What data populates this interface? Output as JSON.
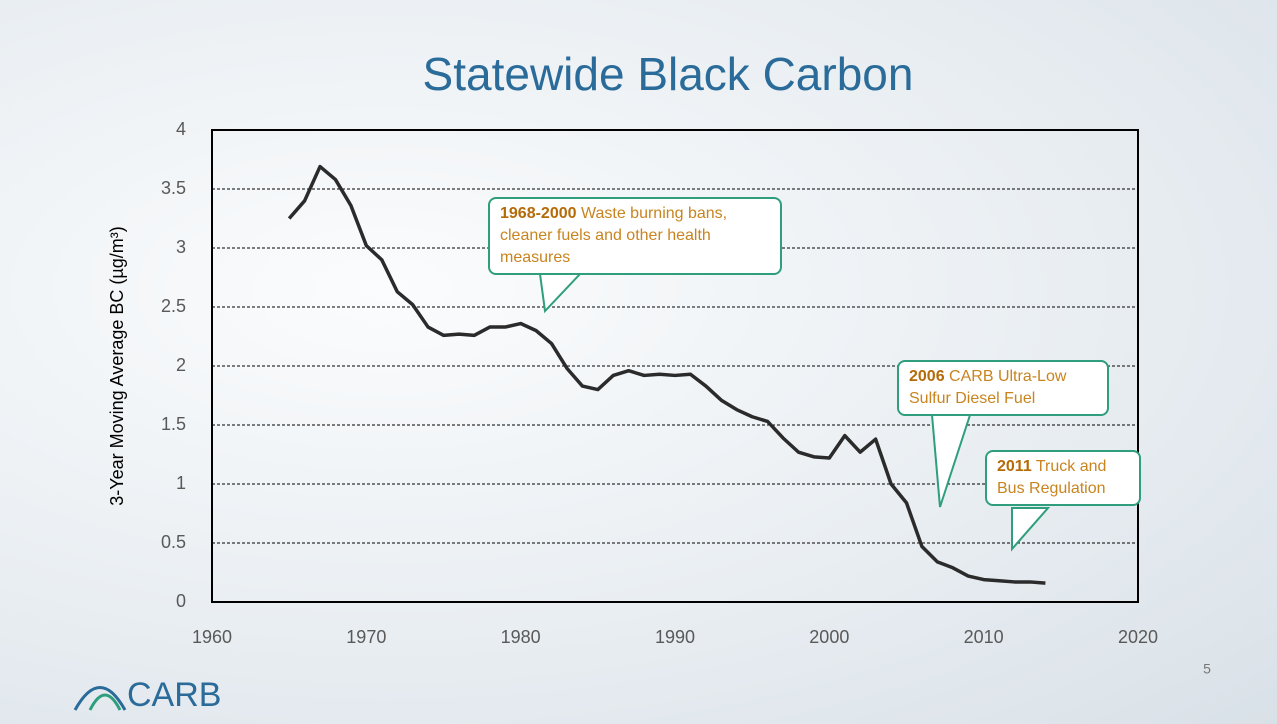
{
  "chart_data": {
    "type": "line",
    "title": "Statewide Black Carbon",
    "y_label": "3-Year Moving  Average BC (µg/m³)",
    "x": [
      1965,
      1966,
      1967,
      1968,
      1969,
      1970,
      1971,
      1972,
      1973,
      1974,
      1975,
      1976,
      1977,
      1978,
      1979,
      1980,
      1981,
      1982,
      1983,
      1984,
      1985,
      1986,
      1987,
      1988,
      1989,
      1990,
      1991,
      1992,
      1993,
      1994,
      1995,
      1996,
      1997,
      1998,
      1999,
      2000,
      2001,
      2002,
      2003,
      2004,
      2005,
      2006,
      2007,
      2008,
      2009,
      2010,
      2011,
      2012,
      2013,
      2014
    ],
    "values": [
      3.25,
      3.4,
      3.69,
      3.58,
      3.36,
      3.02,
      2.9,
      2.63,
      2.52,
      2.33,
      2.26,
      2.27,
      2.26,
      2.33,
      2.33,
      2.36,
      2.3,
      2.19,
      1.98,
      1.83,
      1.8,
      1.92,
      1.96,
      1.92,
      1.93,
      1.92,
      1.93,
      1.83,
      1.71,
      1.63,
      1.57,
      1.53,
      1.39,
      1.27,
      1.23,
      1.22,
      1.41,
      1.27,
      1.38,
      1.0,
      0.84,
      0.47,
      0.34,
      0.29,
      0.22,
      0.19,
      0.18,
      0.17,
      0.17,
      0.16
    ],
    "color": "#2b2b2b",
    "xlim": [
      1960,
      2020
    ],
    "xticks": [
      1960,
      1970,
      1980,
      1990,
      2000,
      2010,
      2020
    ],
    "ylim": [
      0,
      4
    ],
    "yticks": [
      0,
      0.5,
      1,
      1.5,
      2,
      2.5,
      3,
      3.5,
      4
    ],
    "grid": true,
    "annotations": [
      {
        "bold": "1968-2000",
        "text": "Waste burning bans, cleaner fuels and other health measures"
      },
      {
        "bold": "2006",
        "text": "CARB Ultra-Low Sulfur Diesel Fuel"
      },
      {
        "bold": "2011",
        "text": "Truck and Bus Regulation"
      }
    ]
  },
  "footer": {
    "logo_text": "CARB",
    "page_number": 5
  }
}
